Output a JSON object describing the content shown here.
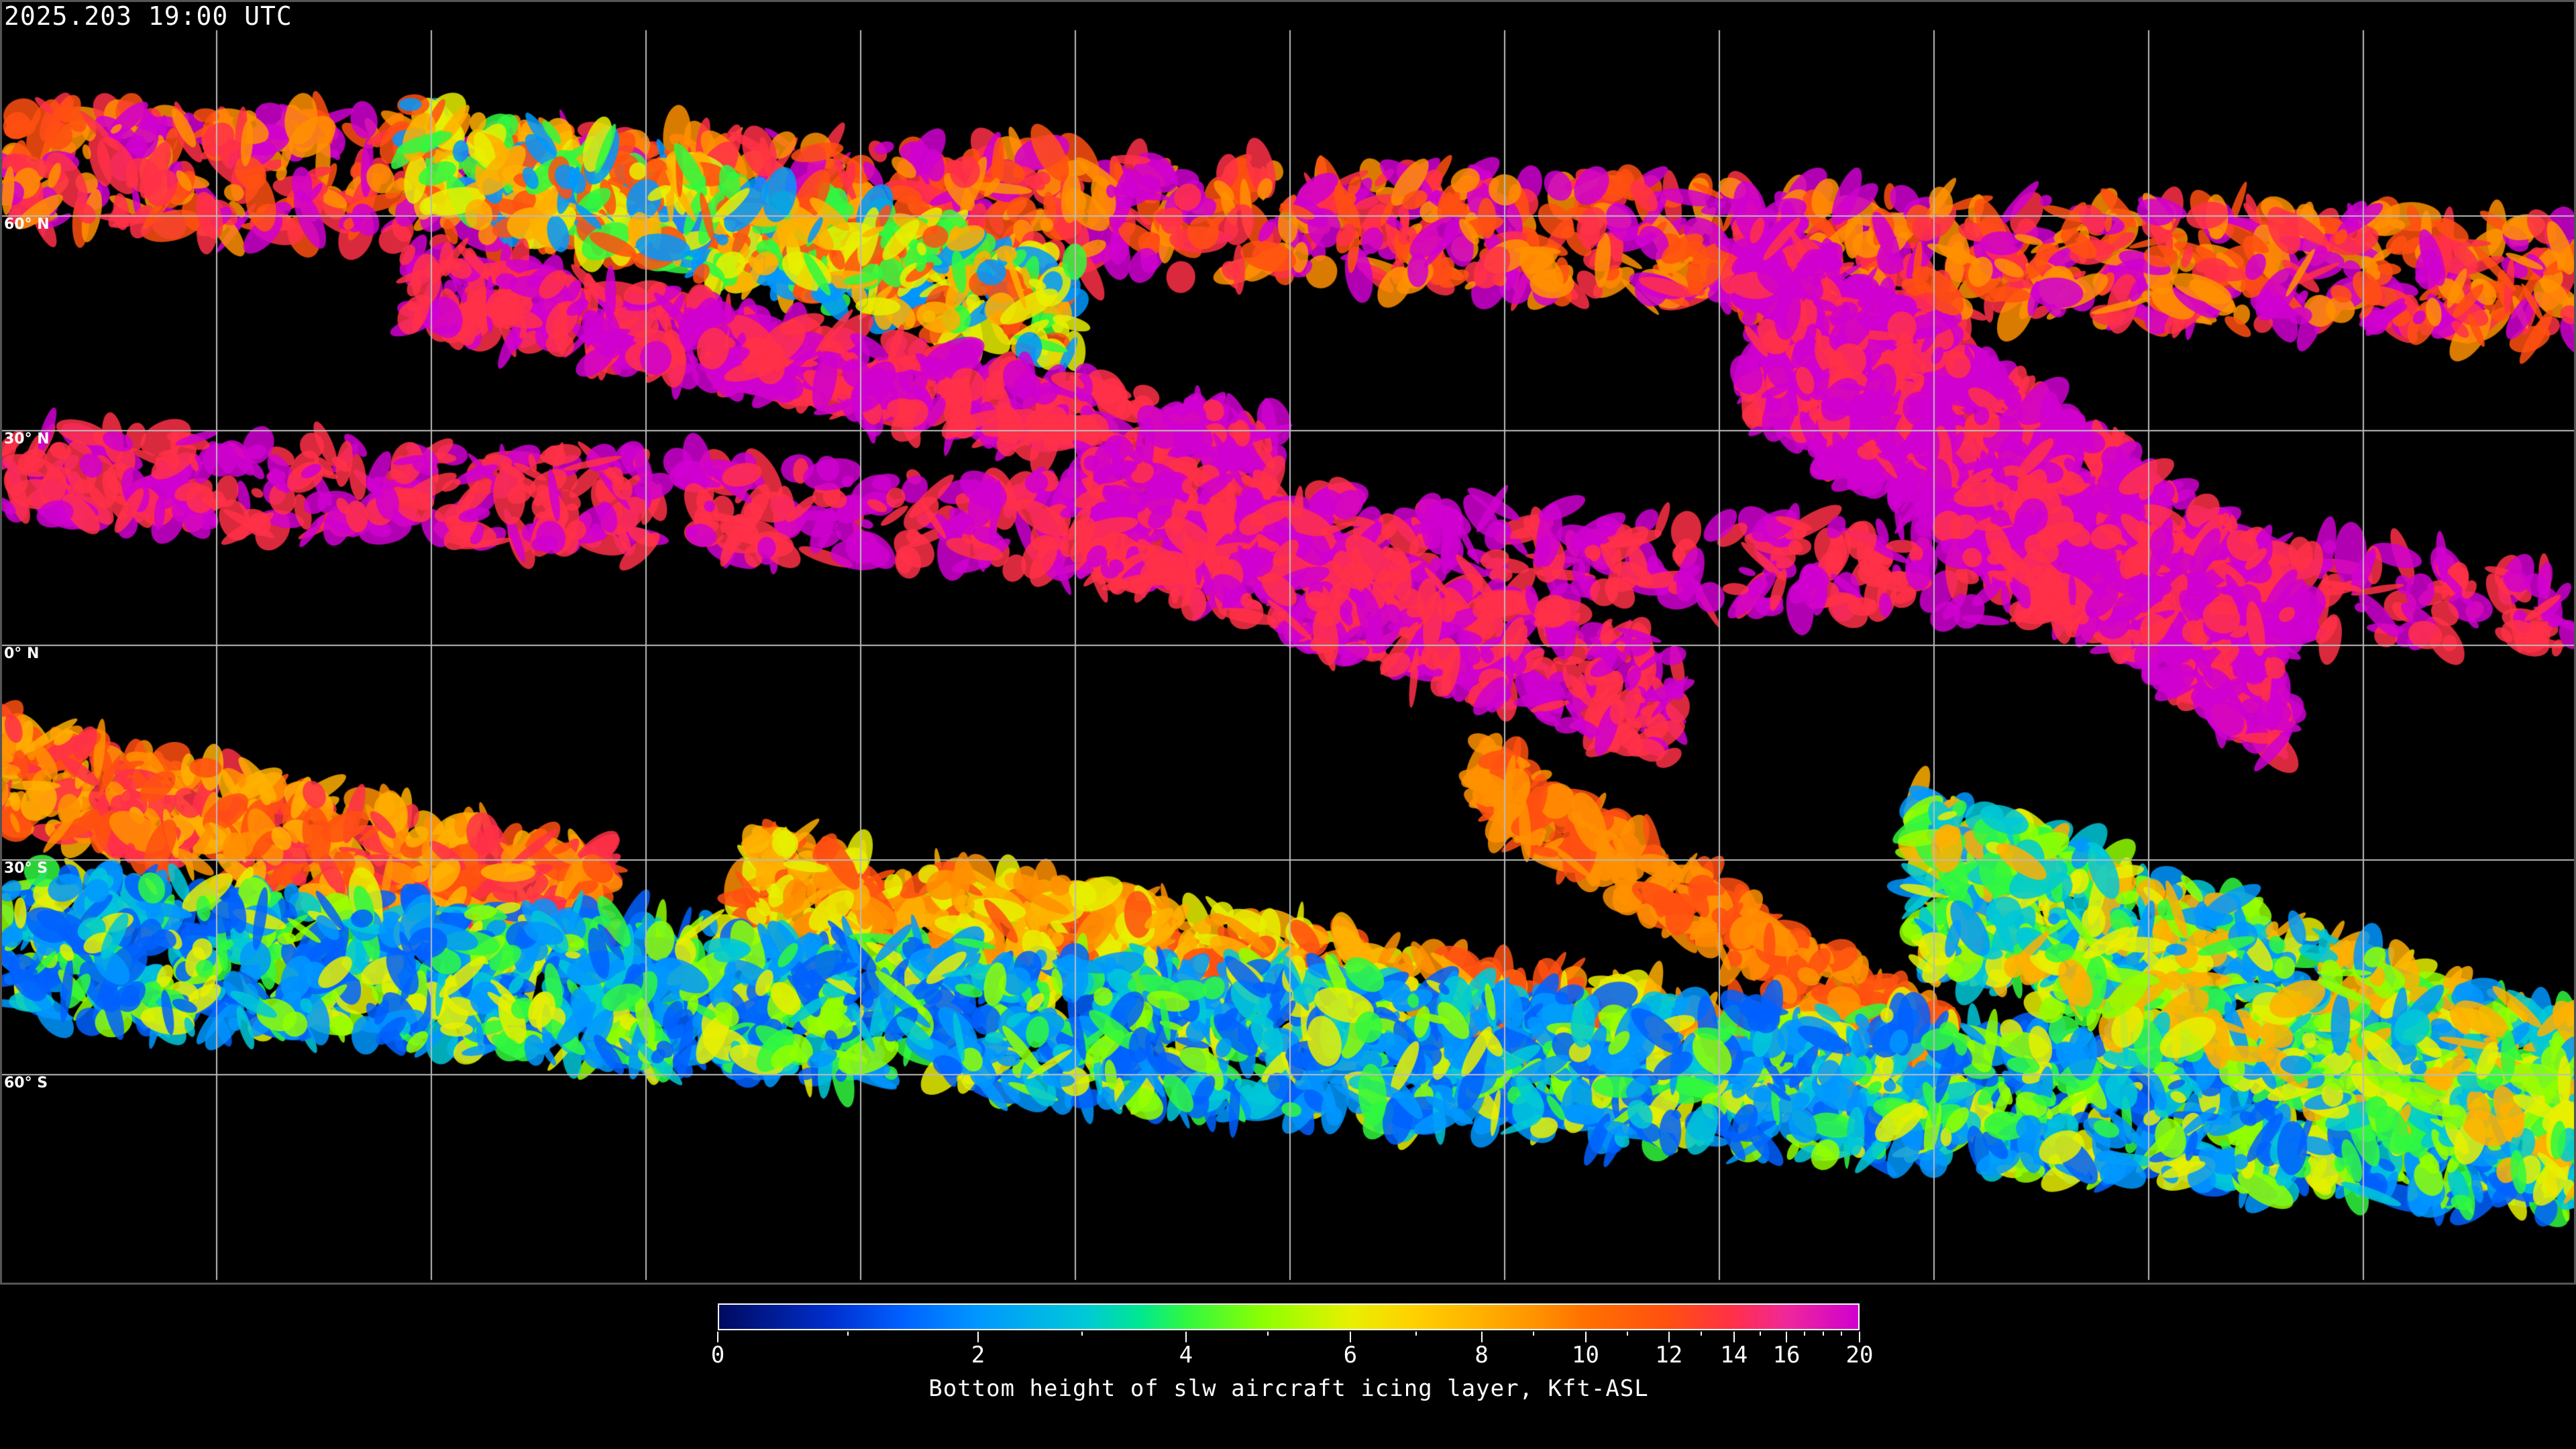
{
  "header": {
    "timestamp": "2025.203 19:00 UTC"
  },
  "map": {
    "projection": "equirectangular",
    "grid": true,
    "gridline_color": "#ffffff",
    "coastline_color": "#ffffff",
    "background_color": "#000000",
    "latitude_labels": [
      "60° N",
      "30° N",
      "0° N",
      "30° S",
      "60° S"
    ]
  },
  "colorbar": {
    "title": "Bottom height of slw aircraft icing layer, Kft-ASL",
    "min": 0,
    "max": 20,
    "tick_labels": [
      "0",
      "2",
      "4",
      "6",
      "8",
      "10",
      "12",
      "14",
      "16",
      "20"
    ],
    "minor_ticks": [
      1,
      3,
      5,
      7,
      9,
      11,
      13,
      15,
      17,
      18,
      19
    ],
    "colors": [
      "#000a60",
      "#0060ff",
      "#0098ff",
      "#00c8d8",
      "#30f840",
      "#90ff00",
      "#e8f000",
      "#ffb000",
      "#ff9000",
      "#ff5010",
      "#ff3048",
      "#d000d0"
    ]
  }
}
